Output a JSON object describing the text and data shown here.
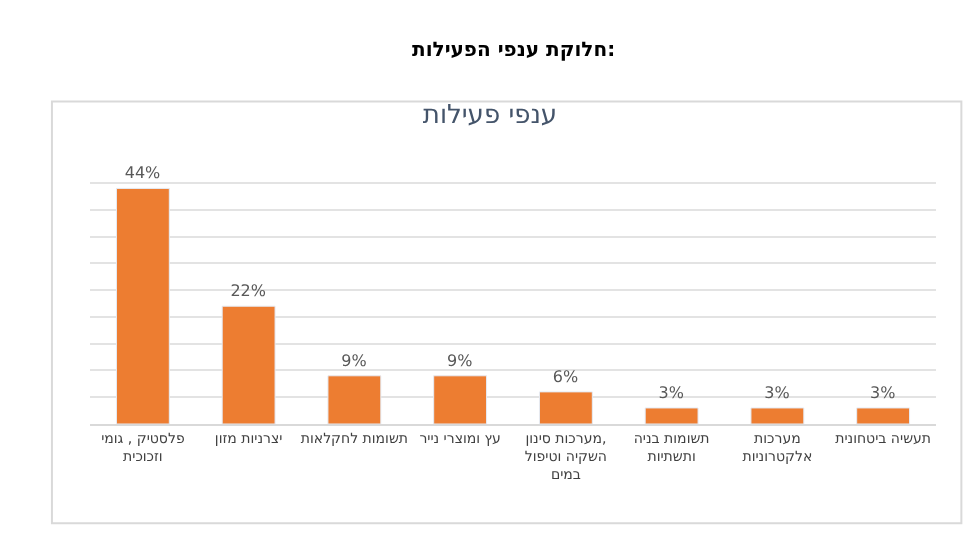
{
  "chart_data": {
    "type": "bar",
    "title": "ענפי פעילות",
    "annotations": [
      "חלוקת ענפי הפעילות:"
    ],
    "categories": [
      "פלסטיק , גומי וזכוכית",
      "יצרניות מזון",
      "תשומות לחקלאות",
      "עץ ומוצרי נייר",
      "מערכות סינון, השקיה וטיפול במים",
      "תשומות בניה ותשתיות",
      "מערכות אלקטרוניות",
      "תעשיה ביטחונית"
    ],
    "values": [
      44,
      22,
      9,
      9,
      6,
      3,
      3,
      3
    ],
    "value_labels": [
      "44%",
      "22%",
      "9%",
      "9%",
      "6%",
      "3%",
      "3%",
      "3%"
    ],
    "color": "#ed7d31",
    "grid": "y",
    "tick_labels": "x"
  }
}
